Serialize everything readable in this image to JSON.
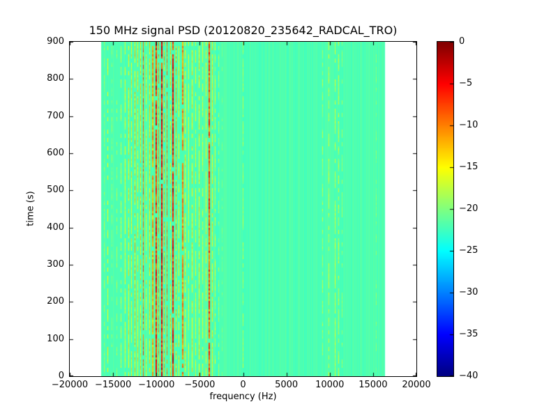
{
  "chart_data": {
    "type": "heatmap",
    "title": "150 MHz signal PSD (20120820_235642_RADCAL_TRO)",
    "xlabel": "frequency (Hz)",
    "ylabel": "time (s)",
    "xlim": [
      -20000,
      20000
    ],
    "ylim": [
      0,
      900
    ],
    "xticks": [
      -20000,
      -15000,
      -10000,
      -5000,
      0,
      5000,
      10000,
      15000,
      20000
    ],
    "xtick_labels": [
      "−20000",
      "−15000",
      "−10000",
      "−5000",
      "0",
      "5000",
      "10000",
      "15000",
      "20000"
    ],
    "yticks": [
      0,
      100,
      200,
      300,
      400,
      500,
      600,
      700,
      800,
      900
    ],
    "ytick_labels": [
      "0",
      "100",
      "200",
      "300",
      "400",
      "500",
      "600",
      "700",
      "800",
      "900"
    ],
    "colormap": "jet",
    "value_range_db": [
      -40,
      0
    ],
    "data_extent_hz": [
      -16384,
      16384
    ],
    "time_extent_s": [
      0,
      900
    ],
    "background_value_db": -22,
    "colorbar": {
      "ticks": [
        0,
        -5,
        -10,
        -15,
        -20,
        -25,
        -30,
        -35,
        -40
      ],
      "tick_labels": [
        "0",
        "−5",
        "−10",
        "−15",
        "−20",
        "−25",
        "−30",
        "−35",
        "−40"
      ]
    },
    "stripes": [
      {
        "freq_hz": -16050,
        "peak_db": -18,
        "width_hz": 80,
        "solidity": 0.5,
        "spread_db": 3
      },
      {
        "freq_hz": -15600,
        "peak_db": -14,
        "width_hz": 80,
        "solidity": 0.5,
        "spread_db": 4
      },
      {
        "freq_hz": -15150,
        "peak_db": -18,
        "width_hz": 70,
        "solidity": 0.45,
        "spread_db": 3
      },
      {
        "freq_hz": -14600,
        "peak_db": -17,
        "width_hz": 70,
        "solidity": 0.5,
        "spread_db": 3
      },
      {
        "freq_hz": -14100,
        "peak_db": -16,
        "width_hz": 80,
        "solidity": 0.6,
        "spread_db": 3
      },
      {
        "freq_hz": -13600,
        "peak_db": -14,
        "width_hz": 90,
        "solidity": 0.8,
        "spread_db": 4
      },
      {
        "freq_hz": -13200,
        "peak_db": -13,
        "width_hz": 90,
        "solidity": 0.8,
        "spread_db": 4
      },
      {
        "freq_hz": -12850,
        "peak_db": -13,
        "width_hz": 100,
        "solidity": 0.85,
        "spread_db": 4
      },
      {
        "freq_hz": -12500,
        "peak_db": -11,
        "width_hz": 110,
        "solidity": 0.9,
        "spread_db": 5
      },
      {
        "freq_hz": -12150,
        "peak_db": -13,
        "width_hz": 90,
        "solidity": 0.85,
        "spread_db": 4
      },
      {
        "freq_hz": -11800,
        "peak_db": -12,
        "width_hz": 100,
        "solidity": 0.85,
        "spread_db": 4
      },
      {
        "freq_hz": -11500,
        "peak_db": -6,
        "width_hz": 120,
        "solidity": 0.95,
        "spread_db": 7
      },
      {
        "freq_hz": -11150,
        "peak_db": -13,
        "width_hz": 90,
        "solidity": 0.85,
        "spread_db": 4
      },
      {
        "freq_hz": -10800,
        "peak_db": -12,
        "width_hz": 100,
        "solidity": 0.85,
        "spread_db": 4
      },
      {
        "freq_hz": -10400,
        "peak_db": -9,
        "width_hz": 130,
        "solidity": 0.9,
        "spread_db": 5
      },
      {
        "freq_hz": -10000,
        "peak_db": -3,
        "width_hz": 160,
        "solidity": 0.97,
        "spread_db": 8
      },
      {
        "freq_hz": -9700,
        "peak_db": -9,
        "width_hz": 110,
        "solidity": 0.9,
        "spread_db": 5
      },
      {
        "freq_hz": -9400,
        "peak_db": -1.5,
        "width_hz": 200,
        "solidity": 0.97,
        "spread_db": 8
      },
      {
        "freq_hz": -9100,
        "peak_db": -10,
        "width_hz": 110,
        "solidity": 0.85,
        "spread_db": 5
      },
      {
        "freq_hz": -8750,
        "peak_db": -8,
        "width_hz": 120,
        "solidity": 0.9,
        "spread_db": 5
      },
      {
        "freq_hz": -8400,
        "peak_db": -12,
        "width_hz": 100,
        "solidity": 0.85,
        "spread_db": 4
      },
      {
        "freq_hz": -8050,
        "peak_db": -2,
        "width_hz": 160,
        "solidity": 0.97,
        "spread_db": 8
      },
      {
        "freq_hz": -7750,
        "peak_db": -10,
        "width_hz": 110,
        "solidity": 0.85,
        "spread_db": 5
      },
      {
        "freq_hz": -7400,
        "peak_db": -13,
        "width_hz": 90,
        "solidity": 0.8,
        "spread_db": 4
      },
      {
        "freq_hz": -7000,
        "peak_db": -8,
        "width_hz": 130,
        "solidity": 0.9,
        "spread_db": 5
      },
      {
        "freq_hz": -6650,
        "peak_db": -13,
        "width_hz": 90,
        "solidity": 0.8,
        "spread_db": 4
      },
      {
        "freq_hz": -6300,
        "peak_db": -14,
        "width_hz": 80,
        "solidity": 0.8,
        "spread_db": 4
      },
      {
        "freq_hz": -5900,
        "peak_db": -13,
        "width_hz": 90,
        "solidity": 0.8,
        "spread_db": 4
      },
      {
        "freq_hz": -5500,
        "peak_db": -14,
        "width_hz": 80,
        "solidity": 0.8,
        "spread_db": 4
      },
      {
        "freq_hz": -5100,
        "peak_db": -13,
        "width_hz": 90,
        "solidity": 0.8,
        "spread_db": 4
      },
      {
        "freq_hz": -4700,
        "peak_db": -15,
        "width_hz": 80,
        "solidity": 0.75,
        "spread_db": 4
      },
      {
        "freq_hz": -4300,
        "peak_db": -14,
        "width_hz": 80,
        "solidity": 0.8,
        "spread_db": 4
      },
      {
        "freq_hz": -3900,
        "peak_db": -5,
        "width_hz": 140,
        "solidity": 0.95,
        "spread_db": 7
      },
      {
        "freq_hz": -3550,
        "peak_db": -13,
        "width_hz": 90,
        "solidity": 0.8,
        "spread_db": 4
      },
      {
        "freq_hz": -3200,
        "peak_db": -15,
        "width_hz": 80,
        "solidity": 0.7,
        "spread_db": 4
      },
      {
        "freq_hz": -2800,
        "peak_db": -17,
        "width_hz": 70,
        "solidity": 0.6,
        "spread_db": 3
      },
      {
        "freq_hz": -2400,
        "peak_db": -19,
        "width_hz": 60,
        "solidity": 0.5,
        "spread_db": 2
      },
      {
        "freq_hz": 0,
        "peak_db": -17,
        "width_hz": 60,
        "solidity": 0.7,
        "spread_db": 3
      },
      {
        "freq_hz": 9200,
        "peak_db": -17,
        "width_hz": 70,
        "solidity": 0.6,
        "spread_db": 3
      },
      {
        "freq_hz": 9900,
        "peak_db": -16,
        "width_hz": 80,
        "solidity": 0.65,
        "spread_db": 3
      },
      {
        "freq_hz": 10600,
        "peak_db": -15,
        "width_hz": 90,
        "solidity": 0.7,
        "spread_db": 3
      },
      {
        "freq_hz": 11050,
        "peak_db": -16,
        "width_hz": 70,
        "solidity": 0.6,
        "spread_db": 3
      },
      {
        "freq_hz": 11400,
        "peak_db": -18,
        "width_hz": 60,
        "solidity": 0.5,
        "spread_db": 2
      },
      {
        "freq_hz": 15400,
        "peak_db": -19,
        "width_hz": 60,
        "solidity": 0.45,
        "spread_db": 2
      }
    ]
  }
}
